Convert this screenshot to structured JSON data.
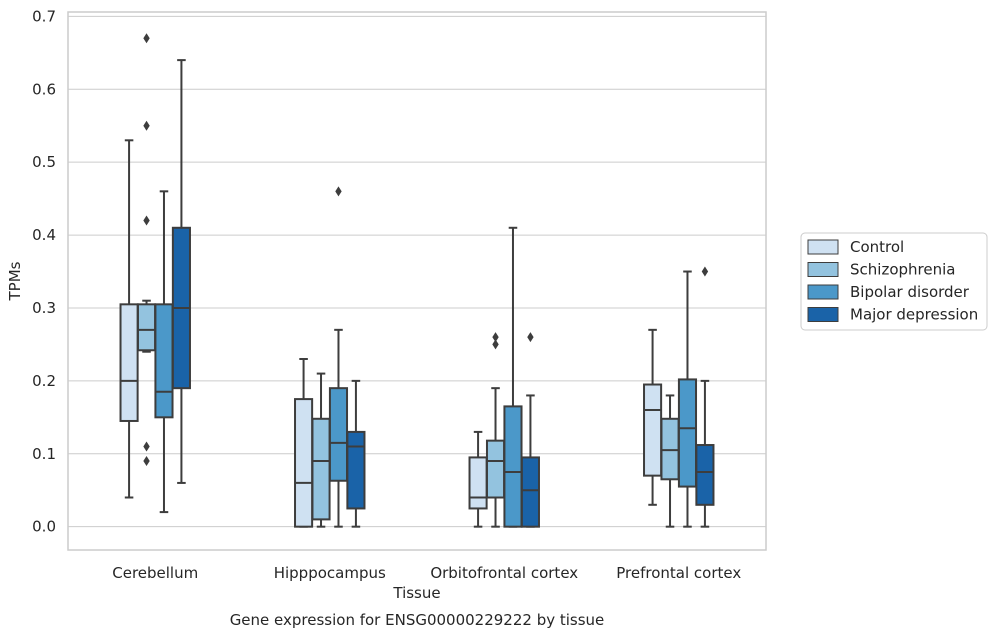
{
  "chart_data": {
    "type": "box",
    "title": "",
    "caption": "Gene expression for ENSG00000229222 by tissue",
    "xlabel": "Tissue",
    "ylabel": "TPMs",
    "ylim": [
      -0.032,
      0.706
    ],
    "yticks": [
      "0.0",
      "0.1",
      "0.2",
      "0.3",
      "0.4",
      "0.5",
      "0.6",
      "0.7"
    ],
    "grid": true,
    "legend_position": "right",
    "categories": [
      "Cerebellum",
      "Hipppocampus",
      "Orbitofrontal cortex",
      "Prefrontal cortex"
    ],
    "series": [
      {
        "name": "Control",
        "color": "#cfe1f2",
        "boxes": [
          {
            "whislo": 0.04,
            "q1": 0.145,
            "med": 0.2,
            "q3": 0.305,
            "whishi": 0.53,
            "fliers": []
          },
          {
            "whislo": 0.0,
            "q1": 0.0,
            "med": 0.06,
            "q3": 0.175,
            "whishi": 0.23,
            "fliers": []
          },
          {
            "whislo": 0.0,
            "q1": 0.025,
            "med": 0.04,
            "q3": 0.095,
            "whishi": 0.13,
            "fliers": []
          },
          {
            "whislo": 0.03,
            "q1": 0.07,
            "med": 0.16,
            "q3": 0.195,
            "whishi": 0.27,
            "fliers": []
          }
        ]
      },
      {
        "name": "Schizophrenia",
        "color": "#93c3df",
        "boxes": [
          {
            "whislo": 0.24,
            "q1": 0.242,
            "med": 0.27,
            "q3": 0.305,
            "whishi": 0.31,
            "fliers": [
              0.67,
              0.55,
              0.42,
              0.11,
              0.09
            ]
          },
          {
            "whislo": 0.0,
            "q1": 0.01,
            "med": 0.09,
            "q3": 0.148,
            "whishi": 0.21,
            "fliers": []
          },
          {
            "whislo": 0.0,
            "q1": 0.04,
            "med": 0.09,
            "q3": 0.118,
            "whishi": 0.19,
            "fliers": [
              0.26,
              0.25
            ]
          },
          {
            "whislo": 0.0,
            "q1": 0.065,
            "med": 0.105,
            "q3": 0.148,
            "whishi": 0.18,
            "fliers": []
          }
        ]
      },
      {
        "name": "Bipolar disorder",
        "color": "#4b98c9",
        "boxes": [
          {
            "whislo": 0.02,
            "q1": 0.15,
            "med": 0.185,
            "q3": 0.305,
            "whishi": 0.46,
            "fliers": []
          },
          {
            "whislo": 0.0,
            "q1": 0.063,
            "med": 0.115,
            "q3": 0.19,
            "whishi": 0.27,
            "fliers": [
              0.46
            ]
          },
          {
            "whislo": 0.0,
            "q1": 0.0,
            "med": 0.075,
            "q3": 0.165,
            "whishi": 0.41,
            "fliers": []
          },
          {
            "whislo": 0.0,
            "q1": 0.055,
            "med": 0.135,
            "q3": 0.202,
            "whishi": 0.35,
            "fliers": []
          }
        ]
      },
      {
        "name": "Major depression",
        "color": "#1a63a8",
        "boxes": [
          {
            "whislo": 0.06,
            "q1": 0.19,
            "med": 0.3,
            "q3": 0.41,
            "whishi": 0.64,
            "fliers": []
          },
          {
            "whislo": 0.0,
            "q1": 0.025,
            "med": 0.11,
            "q3": 0.13,
            "whishi": 0.2,
            "fliers": []
          },
          {
            "whislo": 0.0,
            "q1": 0.0,
            "med": 0.05,
            "q3": 0.095,
            "whishi": 0.18,
            "fliers": [
              0.26
            ]
          },
          {
            "whislo": 0.0,
            "q1": 0.03,
            "med": 0.075,
            "q3": 0.112,
            "whishi": 0.2,
            "fliers": [
              0.35
            ]
          }
        ]
      }
    ]
  }
}
